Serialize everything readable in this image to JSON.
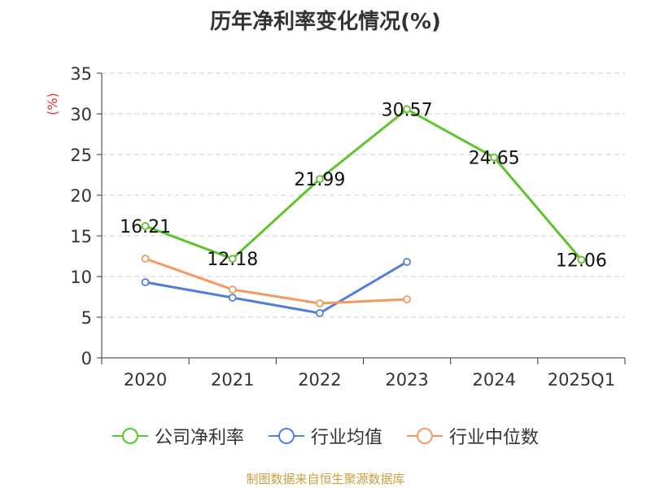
{
  "chart_data": {
    "type": "line",
    "title": "历年净利率变化情况(%)",
    "ylabel": "(%)",
    "categories": [
      "2020",
      "2021",
      "2022",
      "2023",
      "2024",
      "2025Q1"
    ],
    "ylim": [
      0,
      35
    ],
    "yticks": [
      0,
      5,
      10,
      15,
      20,
      25,
      30,
      35
    ],
    "grid": true,
    "legend_position": "bottom",
    "series": [
      {
        "name": "公司净利率",
        "color": "#5ec42d",
        "values": [
          16.21,
          12.18,
          21.99,
          30.57,
          24.65,
          12.06
        ],
        "labels": [
          "16.21",
          "12.18",
          "21.99",
          "30.57",
          "24.65",
          "12.06"
        ]
      },
      {
        "name": "行业均值",
        "color": "#4f7fd8",
        "values": [
          9.3,
          7.4,
          5.5,
          11.8,
          null,
          null
        ]
      },
      {
        "name": "行业中位数",
        "color": "#f39a62",
        "values": [
          12.2,
          8.4,
          6.7,
          7.2,
          null,
          null
        ]
      }
    ]
  },
  "source": "制图数据来自恒生聚源数据库"
}
